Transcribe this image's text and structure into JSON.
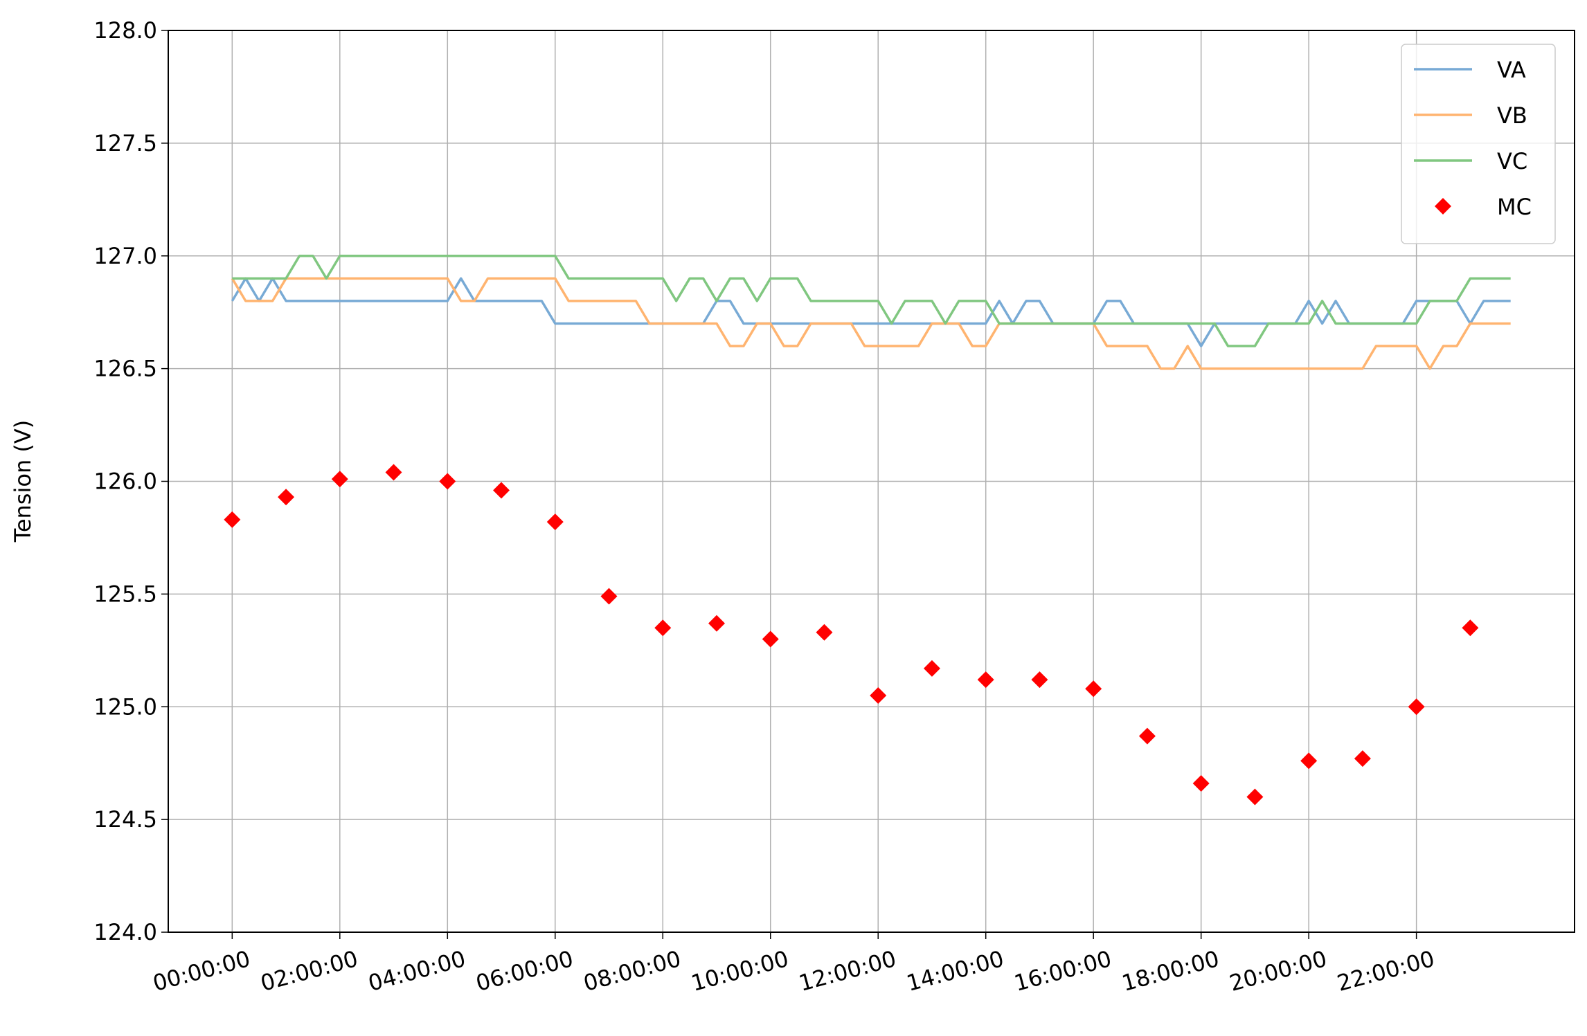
{
  "chart_data": {
    "type": "line",
    "ylabel": "Tension (V)",
    "xlim": [
      -1.1875,
      24.9375
    ],
    "ylim": [
      124.0,
      128.0
    ],
    "xticks": [
      {
        "value": 0,
        "label": "00:00:00"
      },
      {
        "value": 2,
        "label": "02:00:00"
      },
      {
        "value": 4,
        "label": "04:00:00"
      },
      {
        "value": 6,
        "label": "06:00:00"
      },
      {
        "value": 8,
        "label": "08:00:00"
      },
      {
        "value": 10,
        "label": "10:00:00"
      },
      {
        "value": 12,
        "label": "12:00:00"
      },
      {
        "value": 14,
        "label": "14:00:00"
      },
      {
        "value": 16,
        "label": "16:00:00"
      },
      {
        "value": 18,
        "label": "18:00:00"
      },
      {
        "value": 20,
        "label": "20:00:00"
      },
      {
        "value": 22,
        "label": "22:00:00"
      }
    ],
    "yticks": [
      {
        "value": 124.0,
        "label": "124.0"
      },
      {
        "value": 124.5,
        "label": "124.5"
      },
      {
        "value": 125.0,
        "label": "125.0"
      },
      {
        "value": 125.5,
        "label": "125.5"
      },
      {
        "value": 126.0,
        "label": "126.0"
      },
      {
        "value": 126.5,
        "label": "126.5"
      },
      {
        "value": 127.0,
        "label": "127.0"
      },
      {
        "value": 127.5,
        "label": "127.5"
      },
      {
        "value": 128.0,
        "label": "128.0"
      }
    ],
    "grid": true,
    "legend": "upper right",
    "series": [
      {
        "name": "VA",
        "color": "#78aad5",
        "type": "line",
        "x": [
          0,
          0.25,
          0.5,
          0.75,
          1,
          1.25,
          1.5,
          1.75,
          2,
          2.25,
          2.5,
          2.75,
          3,
          3.25,
          3.5,
          3.75,
          4,
          4.25,
          4.5,
          4.75,
          5,
          5.25,
          5.5,
          5.75,
          6,
          6.25,
          6.5,
          6.75,
          7,
          7.25,
          7.5,
          7.75,
          8,
          8.25,
          8.5,
          8.75,
          9,
          9.25,
          9.5,
          9.75,
          10,
          10.25,
          10.5,
          10.75,
          11,
          11.25,
          11.5,
          11.75,
          12,
          12.25,
          12.5,
          12.75,
          13,
          13.25,
          13.5,
          13.75,
          14,
          14.25,
          14.5,
          14.75,
          15,
          15.25,
          15.5,
          15.75,
          16,
          16.25,
          16.5,
          16.75,
          17,
          17.25,
          17.5,
          17.75,
          18,
          18.25,
          18.5,
          18.75,
          19,
          19.25,
          19.5,
          19.75,
          20,
          20.25,
          20.5,
          20.75,
          21,
          21.25,
          21.5,
          21.75,
          22,
          22.25,
          22.5,
          22.75,
          23,
          23.25,
          23.5,
          23.75
        ],
        "values": [
          126.8,
          126.9,
          126.8,
          126.9,
          126.8,
          126.8,
          126.8,
          126.8,
          126.8,
          126.8,
          126.8,
          126.8,
          126.8,
          126.8,
          126.8,
          126.8,
          126.8,
          126.9,
          126.8,
          126.8,
          126.8,
          126.8,
          126.8,
          126.8,
          126.7,
          126.7,
          126.7,
          126.7,
          126.7,
          126.7,
          126.7,
          126.7,
          126.7,
          126.7,
          126.7,
          126.7,
          126.8,
          126.8,
          126.7,
          126.7,
          126.7,
          126.7,
          126.7,
          126.7,
          126.7,
          126.7,
          126.7,
          126.7,
          126.7,
          126.7,
          126.7,
          126.7,
          126.7,
          126.7,
          126.7,
          126.7,
          126.7,
          126.8,
          126.7,
          126.8,
          126.8,
          126.7,
          126.7,
          126.7,
          126.7,
          126.8,
          126.8,
          126.7,
          126.7,
          126.7,
          126.7,
          126.7,
          126.6,
          126.7,
          126.7,
          126.7,
          126.7,
          126.7,
          126.7,
          126.7,
          126.8,
          126.7,
          126.8,
          126.7,
          126.7,
          126.7,
          126.7,
          126.7,
          126.8,
          126.8,
          126.8,
          126.8,
          126.7,
          126.8,
          126.8,
          126.8
        ]
      },
      {
        "name": "VB",
        "color": "#ffb470",
        "type": "line",
        "x": [
          0,
          0.25,
          0.5,
          0.75,
          1,
          1.25,
          1.5,
          1.75,
          2,
          2.25,
          2.5,
          2.75,
          3,
          3.25,
          3.5,
          3.75,
          4,
          4.25,
          4.5,
          4.75,
          5,
          5.25,
          5.5,
          5.75,
          6,
          6.25,
          6.5,
          6.75,
          7,
          7.25,
          7.5,
          7.75,
          8,
          8.25,
          8.5,
          8.75,
          9,
          9.25,
          9.5,
          9.75,
          10,
          10.25,
          10.5,
          10.75,
          11,
          11.25,
          11.5,
          11.75,
          12,
          12.25,
          12.5,
          12.75,
          13,
          13.25,
          13.5,
          13.75,
          14,
          14.25,
          14.5,
          14.75,
          15,
          15.25,
          15.5,
          15.75,
          16,
          16.25,
          16.5,
          16.75,
          17,
          17.25,
          17.5,
          17.75,
          18,
          18.25,
          18.5,
          18.75,
          19,
          19.25,
          19.5,
          19.75,
          20,
          20.25,
          20.5,
          20.75,
          21,
          21.25,
          21.5,
          21.75,
          22,
          22.25,
          22.5,
          22.75,
          23,
          23.25,
          23.5,
          23.75
        ],
        "values": [
          126.9,
          126.8,
          126.8,
          126.8,
          126.9,
          126.9,
          126.9,
          126.9,
          126.9,
          126.9,
          126.9,
          126.9,
          126.9,
          126.9,
          126.9,
          126.9,
          126.9,
          126.8,
          126.8,
          126.9,
          126.9,
          126.9,
          126.9,
          126.9,
          126.9,
          126.8,
          126.8,
          126.8,
          126.8,
          126.8,
          126.8,
          126.7,
          126.7,
          126.7,
          126.7,
          126.7,
          126.7,
          126.6,
          126.6,
          126.7,
          126.7,
          126.6,
          126.6,
          126.7,
          126.7,
          126.7,
          126.7,
          126.6,
          126.6,
          126.6,
          126.6,
          126.6,
          126.7,
          126.7,
          126.7,
          126.6,
          126.6,
          126.7,
          126.7,
          126.7,
          126.7,
          126.7,
          126.7,
          126.7,
          126.7,
          126.6,
          126.6,
          126.6,
          126.6,
          126.5,
          126.5,
          126.6,
          126.5,
          126.5,
          126.5,
          126.5,
          126.5,
          126.5,
          126.5,
          126.5,
          126.5,
          126.5,
          126.5,
          126.5,
          126.5,
          126.6,
          126.6,
          126.6,
          126.6,
          126.5,
          126.6,
          126.6,
          126.7,
          126.7,
          126.7,
          126.7
        ]
      },
      {
        "name": "VC",
        "color": "#80c780",
        "type": "line",
        "x": [
          0,
          0.25,
          0.5,
          0.75,
          1,
          1.25,
          1.5,
          1.75,
          2,
          2.25,
          2.5,
          2.75,
          3,
          3.25,
          3.5,
          3.75,
          4,
          4.25,
          4.5,
          4.75,
          5,
          5.25,
          5.5,
          5.75,
          6,
          6.25,
          6.5,
          6.75,
          7,
          7.25,
          7.5,
          7.75,
          8,
          8.25,
          8.5,
          8.75,
          9,
          9.25,
          9.5,
          9.75,
          10,
          10.25,
          10.5,
          10.75,
          11,
          11.25,
          11.5,
          11.75,
          12,
          12.25,
          12.5,
          12.75,
          13,
          13.25,
          13.5,
          13.75,
          14,
          14.25,
          14.5,
          14.75,
          15,
          15.25,
          15.5,
          15.75,
          16,
          16.25,
          16.5,
          16.75,
          17,
          17.25,
          17.5,
          17.75,
          18,
          18.25,
          18.5,
          18.75,
          19,
          19.25,
          19.5,
          19.75,
          20,
          20.25,
          20.5,
          20.75,
          21,
          21.25,
          21.5,
          21.75,
          22,
          22.25,
          22.5,
          22.75,
          23,
          23.25,
          23.5,
          23.75
        ],
        "values": [
          126.9,
          126.9,
          126.9,
          126.9,
          126.9,
          127.0,
          127.0,
          126.9,
          127.0,
          127.0,
          127.0,
          127.0,
          127.0,
          127.0,
          127.0,
          127.0,
          127.0,
          127.0,
          127.0,
          127.0,
          127.0,
          127.0,
          127.0,
          127.0,
          127.0,
          126.9,
          126.9,
          126.9,
          126.9,
          126.9,
          126.9,
          126.9,
          126.9,
          126.8,
          126.9,
          126.9,
          126.8,
          126.9,
          126.9,
          126.8,
          126.9,
          126.9,
          126.9,
          126.8,
          126.8,
          126.8,
          126.8,
          126.8,
          126.8,
          126.7,
          126.8,
          126.8,
          126.8,
          126.7,
          126.8,
          126.8,
          126.8,
          126.7,
          126.7,
          126.7,
          126.7,
          126.7,
          126.7,
          126.7,
          126.7,
          126.7,
          126.7,
          126.7,
          126.7,
          126.7,
          126.7,
          126.7,
          126.7,
          126.7,
          126.6,
          126.6,
          126.6,
          126.7,
          126.7,
          126.7,
          126.7,
          126.8,
          126.7,
          126.7,
          126.7,
          126.7,
          126.7,
          126.7,
          126.7,
          126.8,
          126.8,
          126.8,
          126.9,
          126.9,
          126.9,
          126.9
        ]
      },
      {
        "name": "MC",
        "color": "#ff0000",
        "type": "scatter",
        "x": [
          0,
          1,
          2,
          3,
          4,
          5,
          6,
          7,
          8,
          9,
          10,
          11,
          12,
          13,
          14,
          15,
          16,
          17,
          18,
          19,
          20,
          21,
          22,
          23
        ],
        "values": [
          125.83,
          125.93,
          126.01,
          126.04,
          126.0,
          125.96,
          125.82,
          125.49,
          125.35,
          125.37,
          125.3,
          125.33,
          125.05,
          125.17,
          125.12,
          125.12,
          125.08,
          124.87,
          124.66,
          124.6,
          124.76,
          124.77,
          125.0,
          125.35
        ]
      }
    ]
  }
}
